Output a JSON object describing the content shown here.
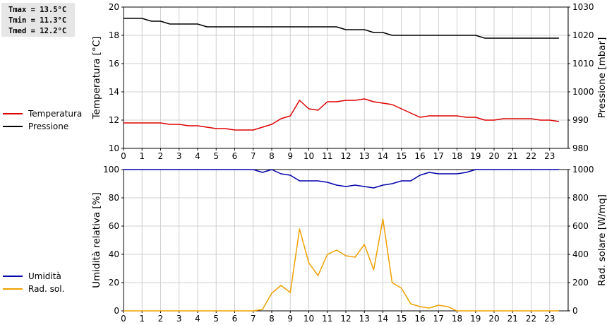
{
  "stats": [
    "Tmax = 13.5°C",
    "Tmin = 11.3°C",
    "Tmed = 12.2°C"
  ],
  "chart_data": [
    {
      "type": "line",
      "x_ticks": [
        "0",
        "1",
        "2",
        "3",
        "4",
        "5",
        "6",
        "7",
        "8",
        "9",
        "10",
        "11",
        "12",
        "13",
        "14",
        "15",
        "16",
        "17",
        "18",
        "19",
        "20",
        "21",
        "22",
        "23"
      ],
      "xlim": [
        0,
        24
      ],
      "ylabel": "Temperatura [°C]",
      "ylim": [
        10,
        20
      ],
      "y_ticks": [
        "10",
        "12",
        "14",
        "16",
        "18",
        "20"
      ],
      "y2label": "Pressione [mbar]",
      "y2lim": [
        980,
        1030
      ],
      "y2_ticks": [
        "980",
        "990",
        "1000",
        "1010",
        "1020",
        "1030"
      ],
      "grid": true,
      "legend_position": "left",
      "series": [
        {
          "name": "Temperatura",
          "axis": "left",
          "color": "#dd0000",
          "x": [
            0,
            0.5,
            1,
            1.5,
            2,
            2.5,
            3,
            3.5,
            4,
            4.5,
            5,
            5.5,
            6,
            6.5,
            7,
            7.5,
            8,
            8.5,
            9,
            9.5,
            10,
            10.5,
            11,
            11.5,
            12,
            12.5,
            13,
            13.5,
            14,
            14.5,
            15,
            15.5,
            16,
            16.5,
            17,
            17.5,
            18,
            18.5,
            19,
            19.5,
            20,
            20.5,
            21,
            21.5,
            22,
            22.5,
            23,
            23.5
          ],
          "y": [
            11.8,
            11.8,
            11.8,
            11.8,
            11.8,
            11.7,
            11.7,
            11.6,
            11.6,
            11.5,
            11.4,
            11.4,
            11.3,
            11.3,
            11.3,
            11.5,
            11.7,
            12.1,
            12.3,
            13.4,
            12.8,
            12.7,
            13.3,
            13.3,
            13.4,
            13.4,
            13.5,
            13.3,
            13.2,
            13.1,
            12.8,
            12.5,
            12.2,
            12.3,
            12.3,
            12.3,
            12.3,
            12.2,
            12.2,
            12.0,
            12.0,
            12.1,
            12.1,
            12.1,
            12.1,
            12.0,
            12.0,
            11.9
          ]
        },
        {
          "name": "Pressione",
          "axis": "right",
          "color": "#000000",
          "x": [
            0,
            0.5,
            1,
            1.5,
            2,
            2.5,
            3,
            3.5,
            4,
            4.5,
            5,
            5.5,
            6,
            6.5,
            7,
            7.5,
            8,
            8.5,
            9,
            9.5,
            10,
            10.5,
            11,
            11.5,
            12,
            12.5,
            13,
            13.5,
            14,
            14.5,
            15,
            15.5,
            16,
            16.5,
            17,
            17.5,
            18,
            18.5,
            19,
            19.5,
            20,
            20.5,
            21,
            21.5,
            22,
            22.5,
            23,
            23.5
          ],
          "y": [
            1026,
            1026,
            1026,
            1025,
            1025,
            1024,
            1024,
            1024,
            1024,
            1023,
            1023,
            1023,
            1023,
            1023,
            1023,
            1023,
            1023,
            1023,
            1023,
            1023,
            1023,
            1023,
            1023,
            1023,
            1022,
            1022,
            1022,
            1021,
            1021,
            1020,
            1020,
            1020,
            1020,
            1020,
            1020,
            1020,
            1020,
            1020,
            1020,
            1019,
            1019,
            1019,
            1019,
            1019,
            1019,
            1019,
            1019,
            1019
          ]
        }
      ]
    },
    {
      "type": "line",
      "x_ticks": [
        "0",
        "1",
        "2",
        "3",
        "4",
        "5",
        "6",
        "7",
        "8",
        "9",
        "10",
        "11",
        "12",
        "13",
        "14",
        "15",
        "16",
        "17",
        "18",
        "19",
        "20",
        "21",
        "22",
        "23"
      ],
      "xlim": [
        0,
        24
      ],
      "ylabel": "Umidità relativa [%]",
      "ylim": [
        0,
        100
      ],
      "y_ticks": [
        "0",
        "20",
        "40",
        "60",
        "80",
        "100"
      ],
      "y2label": "Rad. solare [W/mq]",
      "y2lim": [
        0,
        1000
      ],
      "y2_ticks": [
        "0",
        "200",
        "400",
        "600",
        "800",
        "1000"
      ],
      "grid": true,
      "legend_position": "left",
      "series": [
        {
          "name": "Umidità",
          "axis": "left",
          "color": "#0000aa",
          "x": [
            0,
            0.5,
            1,
            1.5,
            2,
            2.5,
            3,
            3.5,
            4,
            4.5,
            5,
            5.5,
            6,
            6.5,
            7,
            7.5,
            8,
            8.5,
            9,
            9.5,
            10,
            10.5,
            11,
            11.5,
            12,
            12.5,
            13,
            13.5,
            14,
            14.5,
            15,
            15.5,
            16,
            16.5,
            17,
            17.5,
            18,
            18.5,
            19,
            19.5,
            20,
            20.5,
            21,
            21.5,
            22,
            22.5,
            23,
            23.5
          ],
          "y": [
            100,
            100,
            100,
            100,
            100,
            100,
            100,
            100,
            100,
            100,
            100,
            100,
            100,
            100,
            100,
            98,
            100,
            97,
            96,
            92,
            92,
            92,
            91,
            89,
            88,
            89,
            88,
            87,
            89,
            90,
            92,
            92,
            96,
            98,
            97,
            97,
            97,
            98,
            100,
            100,
            100,
            100,
            100,
            100,
            100,
            100,
            100,
            100
          ]
        },
        {
          "name": "Rad. sol.",
          "axis": "right",
          "color": "#f0a000",
          "x": [
            0,
            0.5,
            1,
            1.5,
            2,
            2.5,
            3,
            3.5,
            4,
            4.5,
            5,
            5.5,
            6,
            6.5,
            7,
            7.5,
            8,
            8.5,
            9,
            9.5,
            10,
            10.5,
            11,
            11.5,
            12,
            12.5,
            13,
            13.5,
            14,
            14.5,
            15,
            15.5,
            16,
            16.5,
            17,
            17.5,
            18,
            18.5,
            19,
            19.5,
            20,
            20.5,
            21,
            21.5,
            22,
            22.5,
            23,
            23.5
          ],
          "y": [
            0,
            0,
            0,
            0,
            0,
            0,
            0,
            0,
            0,
            0,
            0,
            0,
            0,
            0,
            0,
            10,
            125,
            180,
            130,
            580,
            340,
            250,
            400,
            430,
            390,
            380,
            470,
            290,
            650,
            200,
            160,
            50,
            30,
            20,
            40,
            30,
            0,
            0,
            0,
            0,
            0,
            0,
            0,
            0,
            0,
            0,
            0,
            0
          ]
        }
      ]
    }
  ]
}
